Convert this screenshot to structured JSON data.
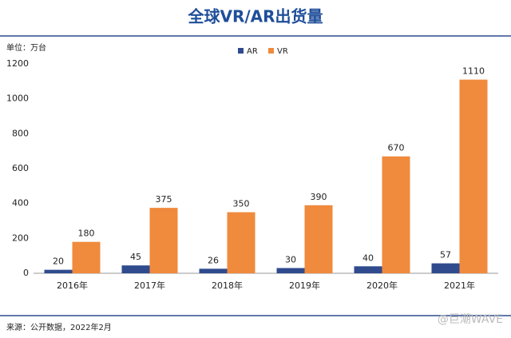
{
  "chart_data": {
    "type": "bar",
    "title": "全球VR/AR出货量",
    "unit_label": "单位：万台",
    "categories": [
      "2016年",
      "2017年",
      "2018年",
      "2019年",
      "2020年",
      "2021年"
    ],
    "series": [
      {
        "name": "AR",
        "color": "#2f4b8e",
        "values": [
          20,
          45,
          26,
          30,
          40,
          57
        ]
      },
      {
        "name": "VR",
        "color": "#f08a3c",
        "values": [
          180,
          375,
          350,
          390,
          670,
          1110
        ]
      }
    ],
    "ylim": [
      0,
      1200
    ],
    "yticks": [
      0,
      200,
      400,
      600,
      800,
      1000,
      1200
    ],
    "grid": false,
    "source": "来源：公开数据，2022年2月",
    "watermark": "@巨潮WAVE"
  }
}
